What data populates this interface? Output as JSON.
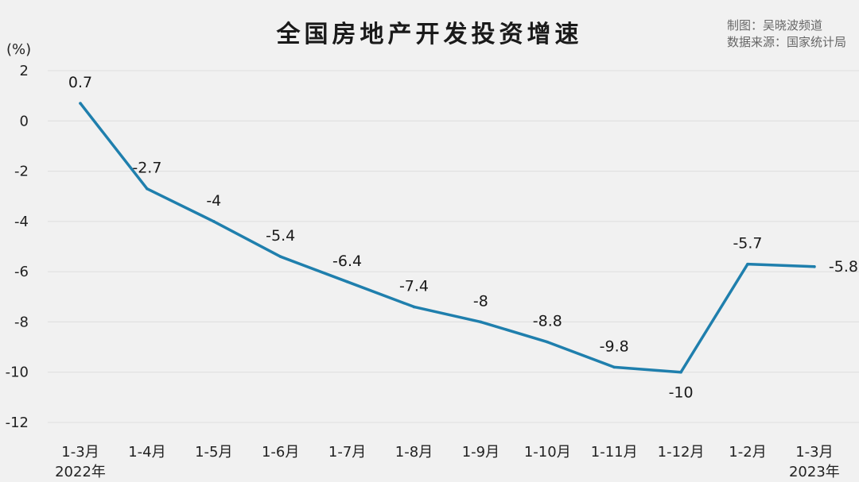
{
  "title": "全国房地产开发投资增速",
  "credit_author": "制图：吴晓波频道",
  "credit_source": "数据来源：国家统计局",
  "colors": {
    "line": "#1f7fad",
    "grid": "#dedede",
    "background": "#f1f1f1"
  },
  "chart_data": {
    "type": "line",
    "title": "全国房地产开发投资增速",
    "ylabel": "(%)",
    "xlabel": "",
    "ylim": [
      -12,
      2
    ],
    "yticks": [
      2,
      0,
      -2,
      -4,
      -6,
      -8,
      -10,
      -12
    ],
    "grid": true,
    "categories": [
      "1-3月",
      "1-4月",
      "1-5月",
      "1-6月",
      "1-7月",
      "1-8月",
      "1-9月",
      "1-10月",
      "1-11月",
      "1-12月",
      "1-2月",
      "1-3月"
    ],
    "year_labels": [
      "2022年",
      "",
      "",
      "",
      "",
      "",
      "",
      "",
      "",
      "",
      "",
      "2023年"
    ],
    "values": [
      0.7,
      -2.7,
      -4,
      -5.4,
      -6.4,
      -7.4,
      -8,
      -8.8,
      -9.8,
      -10,
      -5.7,
      -5.8
    ],
    "data_labels": [
      "0.7",
      "-2.7",
      "-4",
      "-5.4",
      "-6.4",
      "-7.4",
      "-8",
      "-8.8",
      "-9.8",
      "-10",
      "-5.7",
      "-5.8"
    ]
  }
}
